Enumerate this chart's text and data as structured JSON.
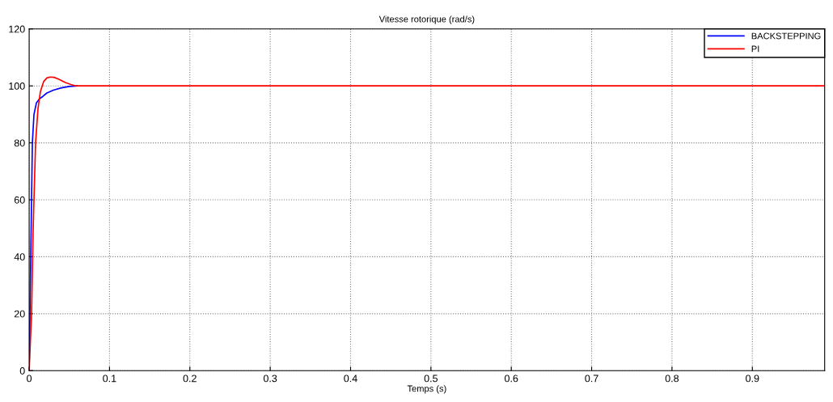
{
  "chart_data": {
    "type": "line",
    "title": "Vitesse rotorique (rad/s)",
    "xlabel": "Temps (s)",
    "series": [
      {
        "name": "BACKSTEPPING",
        "color": "#0000ff",
        "x": [
          0,
          0.002,
          0.004,
          0.006,
          0.009,
          0.013,
          0.017,
          0.022,
          0.03,
          0.04,
          0.05,
          0.06
        ],
        "values": [
          0,
          40,
          80,
          90,
          94,
          95.5,
          96.3,
          97.5,
          98.5,
          99.3,
          99.8,
          100
        ]
      },
      {
        "name": "PI",
        "color": "#ff0000",
        "x": [
          0,
          0.003,
          0.005,
          0.008,
          0.011,
          0.014,
          0.018,
          0.022,
          0.026,
          0.031,
          0.037,
          0.045,
          0.052,
          0.058,
          0.1,
          0.3,
          0.5,
          0.7,
          0.9,
          0.99
        ],
        "values": [
          0,
          20,
          50,
          80,
          92,
          98,
          101.5,
          102.8,
          103.1,
          103,
          102.3,
          101.2,
          100.5,
          100,
          100,
          100,
          100,
          100,
          100,
          100
        ]
      }
    ],
    "xlim": [
      0,
      0.99
    ],
    "ylim": [
      0,
      120
    ],
    "xticks": [
      0,
      0.1,
      0.2,
      0.3,
      0.4,
      0.5,
      0.6,
      0.7,
      0.8,
      0.9
    ],
    "yticks": [
      0,
      20,
      40,
      60,
      80,
      100,
      120
    ],
    "grid": true,
    "legend": "top right",
    "line_style": "solid"
  }
}
